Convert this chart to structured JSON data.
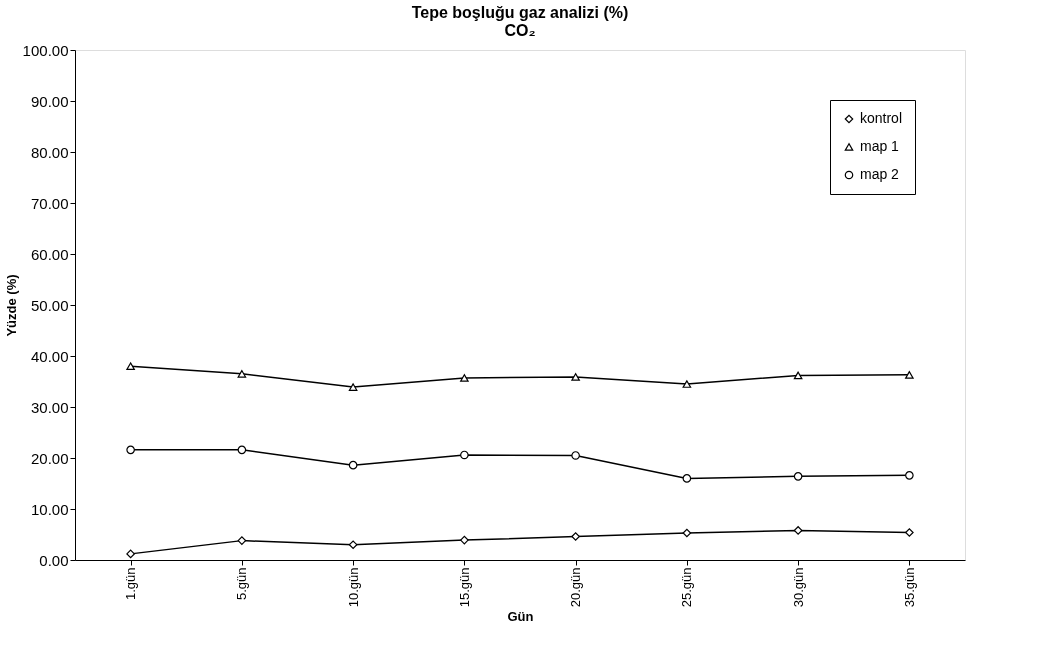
{
  "chart_data": {
    "type": "line",
    "title": "Tepe boşluğu gaz analizi (%)",
    "subtitle": "CO₂",
    "xlabel": "Gün",
    "ylabel": "Yüzde (%)",
    "categories": [
      "1.gün",
      "5.gün",
      "10.gün",
      "15.gün",
      "20.gün",
      "25.gün",
      "30.gün",
      "35.gün"
    ],
    "series": [
      {
        "name": "kontrol",
        "color": "#000000",
        "marker": "diamond",
        "values": [
          1.2,
          3.8,
          3.0,
          3.9,
          4.6,
          5.3,
          5.8,
          5.4
        ]
      },
      {
        "name": "map 1",
        "color": "#000000",
        "marker": "triangle",
        "values": [
          38.0,
          36.5,
          33.9,
          35.7,
          35.9,
          34.5,
          36.2,
          36.3
        ]
      },
      {
        "name": "map 2",
        "color": "#000000",
        "marker": "circle",
        "values": [
          21.6,
          21.6,
          18.6,
          20.6,
          20.5,
          16.0,
          16.4,
          16.6
        ]
      }
    ],
    "ylim": [
      0,
      100
    ],
    "yticks": [
      {
        "value": 0,
        "label": "0.00"
      },
      {
        "value": 10,
        "label": "10.00"
      },
      {
        "value": 20,
        "label": "20.00"
      },
      {
        "value": 30,
        "label": "30.00"
      },
      {
        "value": 40,
        "label": "40.00"
      },
      {
        "value": 50,
        "label": "50.00"
      },
      {
        "value": 60,
        "label": "60.00"
      },
      {
        "value": 70,
        "label": "70.00"
      },
      {
        "value": 80,
        "label": "80.00"
      },
      {
        "value": 90,
        "label": "90.00"
      },
      {
        "value": 100,
        "label": "100.00"
      }
    ],
    "grid": false,
    "legend": "top right",
    "line_style": "solid"
  }
}
